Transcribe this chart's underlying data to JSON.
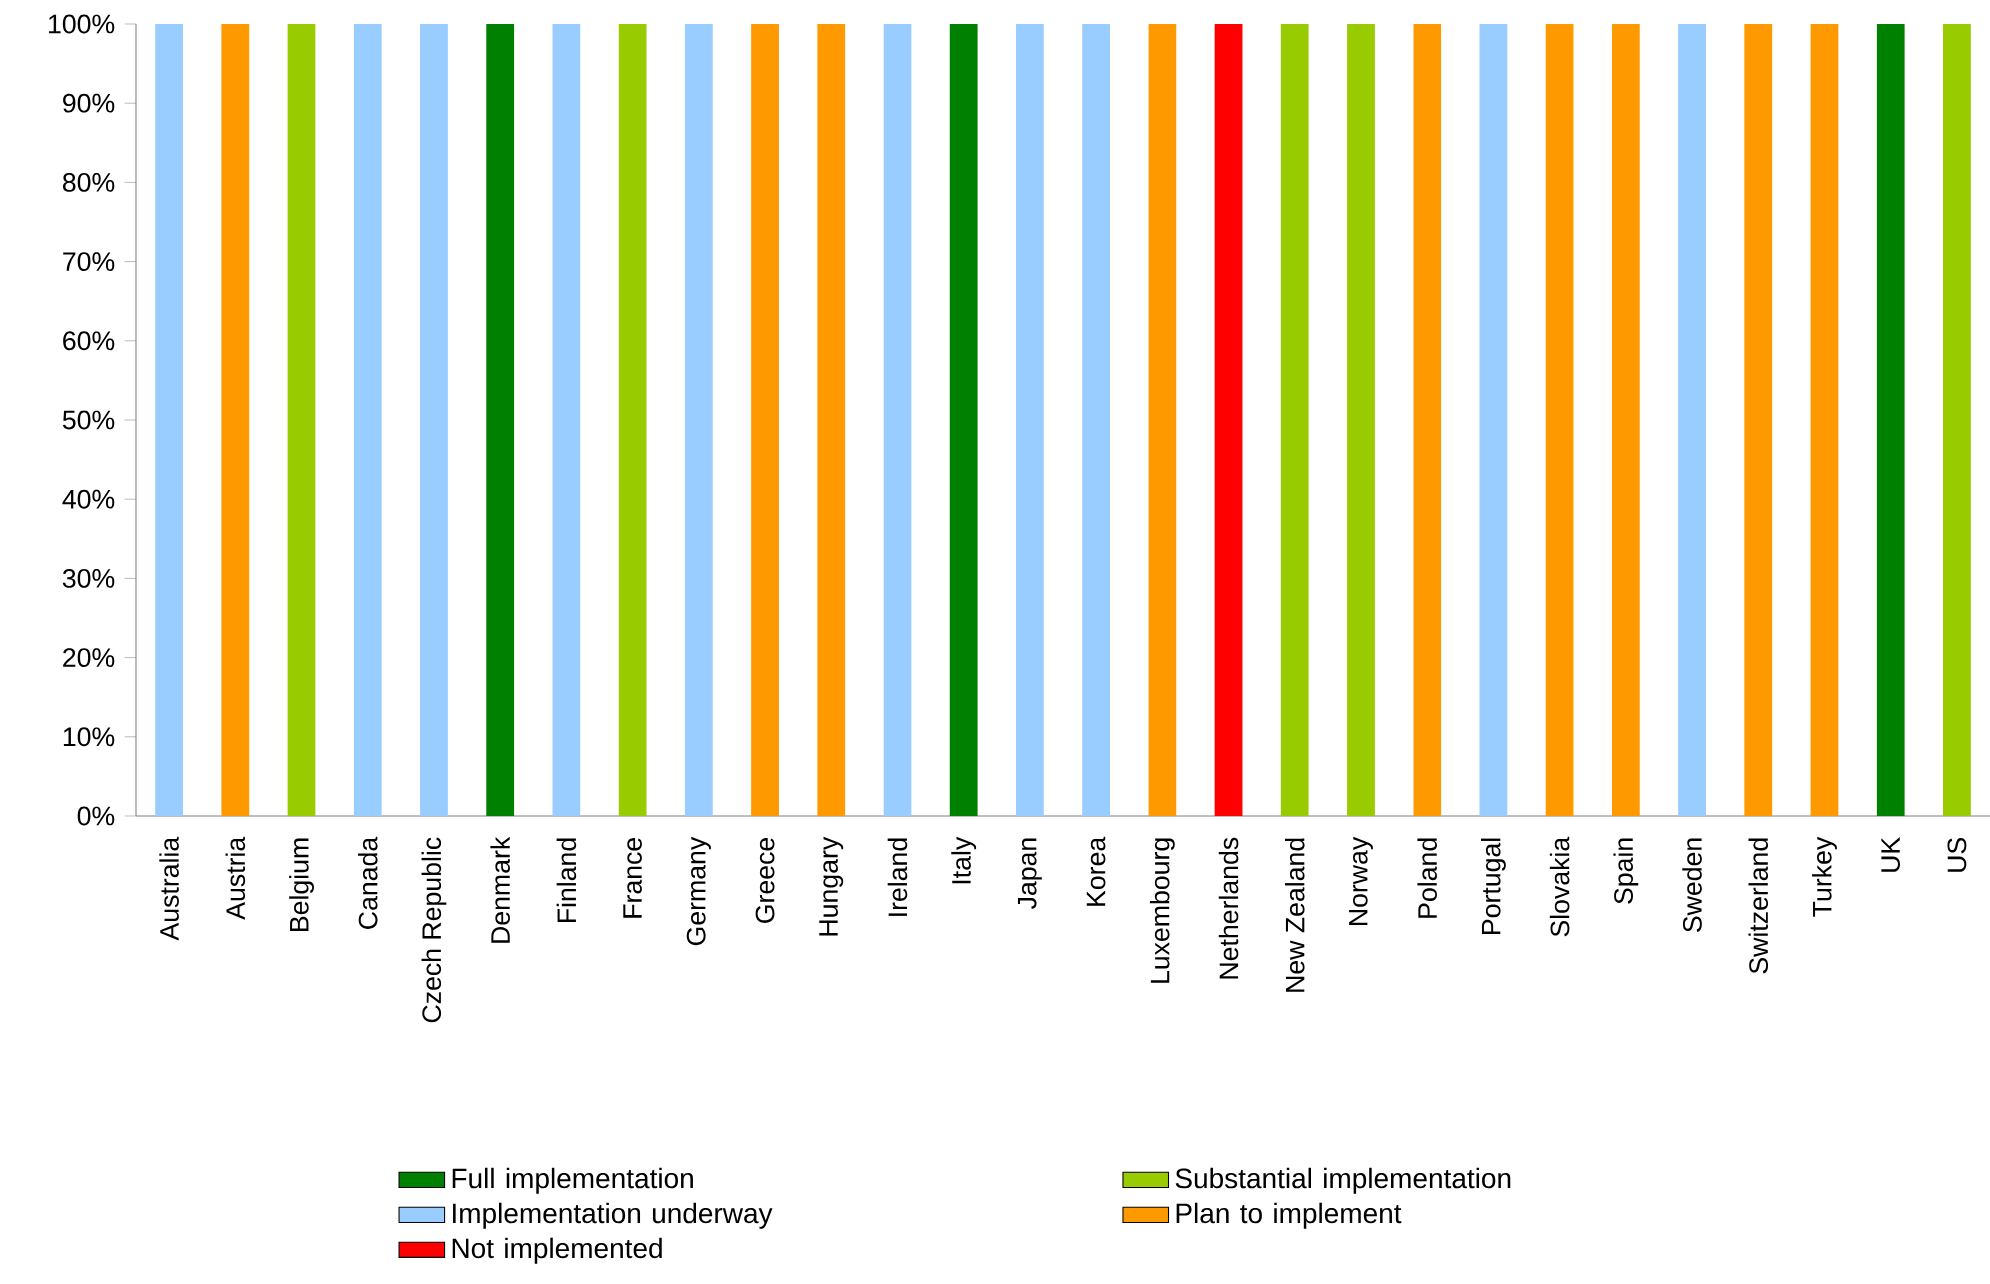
{
  "chart_data": {
    "type": "bar",
    "stacked": true,
    "legend": "bottom",
    "categories": [
      "Australia",
      "Austria",
      "Belgium",
      "Canada",
      "Czech Republic",
      "Denmark",
      "Finland",
      "France",
      "Germany",
      "Greece",
      "Hungary",
      "Ireland",
      "Italy",
      "Japan",
      "Korea",
      "Luxembourg",
      "Netherlands",
      "New Zealand",
      "Norway",
      "Poland",
      "Portugal",
      "Slovakia",
      "Spain",
      "Sweden",
      "Switzerland",
      "Turkey",
      "UK",
      "US"
    ],
    "ylim": [
      0,
      100
    ],
    "yticks": [
      {
        "value": 0,
        "label": "0%"
      },
      {
        "value": 10,
        "label": "10%"
      },
      {
        "value": 20,
        "label": "20%"
      },
      {
        "value": 30,
        "label": "30%"
      },
      {
        "value": 40,
        "label": "40%"
      },
      {
        "value": 50,
        "label": "50%"
      },
      {
        "value": 60,
        "label": "60%"
      },
      {
        "value": 70,
        "label": "70%"
      },
      {
        "value": 80,
        "label": "80%"
      },
      {
        "value": 90,
        "label": "90%"
      },
      {
        "value": 100,
        "label": "100%"
      }
    ],
    "series": [
      {
        "name": "Full implementation",
        "color": "#008000",
        "values": [
          null,
          null,
          null,
          null,
          null,
          100,
          null,
          null,
          null,
          null,
          null,
          null,
          100,
          null,
          null,
          null,
          null,
          null,
          null,
          null,
          null,
          null,
          null,
          null,
          null,
          null,
          100,
          null
        ]
      },
      {
        "name": "Substantial implementation",
        "color": "#99cc00",
        "values": [
          null,
          null,
          100,
          null,
          null,
          null,
          null,
          100,
          null,
          null,
          null,
          null,
          null,
          null,
          null,
          null,
          null,
          100,
          100,
          null,
          null,
          null,
          null,
          null,
          null,
          null,
          null,
          100
        ]
      },
      {
        "name": "Implementation underway",
        "color": "#99ccff",
        "values": [
          100,
          null,
          null,
          100,
          100,
          null,
          100,
          null,
          100,
          null,
          null,
          100,
          null,
          100,
          100,
          null,
          null,
          null,
          null,
          null,
          100,
          null,
          null,
          100,
          null,
          null,
          null,
          null
        ]
      },
      {
        "name": "Plan to implement",
        "color": "#ff9900",
        "values": [
          null,
          100,
          null,
          null,
          null,
          null,
          null,
          null,
          null,
          100,
          100,
          null,
          null,
          null,
          null,
          100,
          null,
          null,
          null,
          100,
          null,
          100,
          100,
          null,
          100,
          100,
          null,
          null
        ]
      },
      {
        "name": "Not implemented",
        "color": "#ff0000",
        "values": [
          null,
          null,
          null,
          null,
          null,
          null,
          null,
          null,
          null,
          null,
          null,
          null,
          null,
          null,
          null,
          null,
          100,
          null,
          null,
          null,
          null,
          null,
          null,
          null,
          null,
          null,
          null,
          null
        ]
      }
    ]
  }
}
